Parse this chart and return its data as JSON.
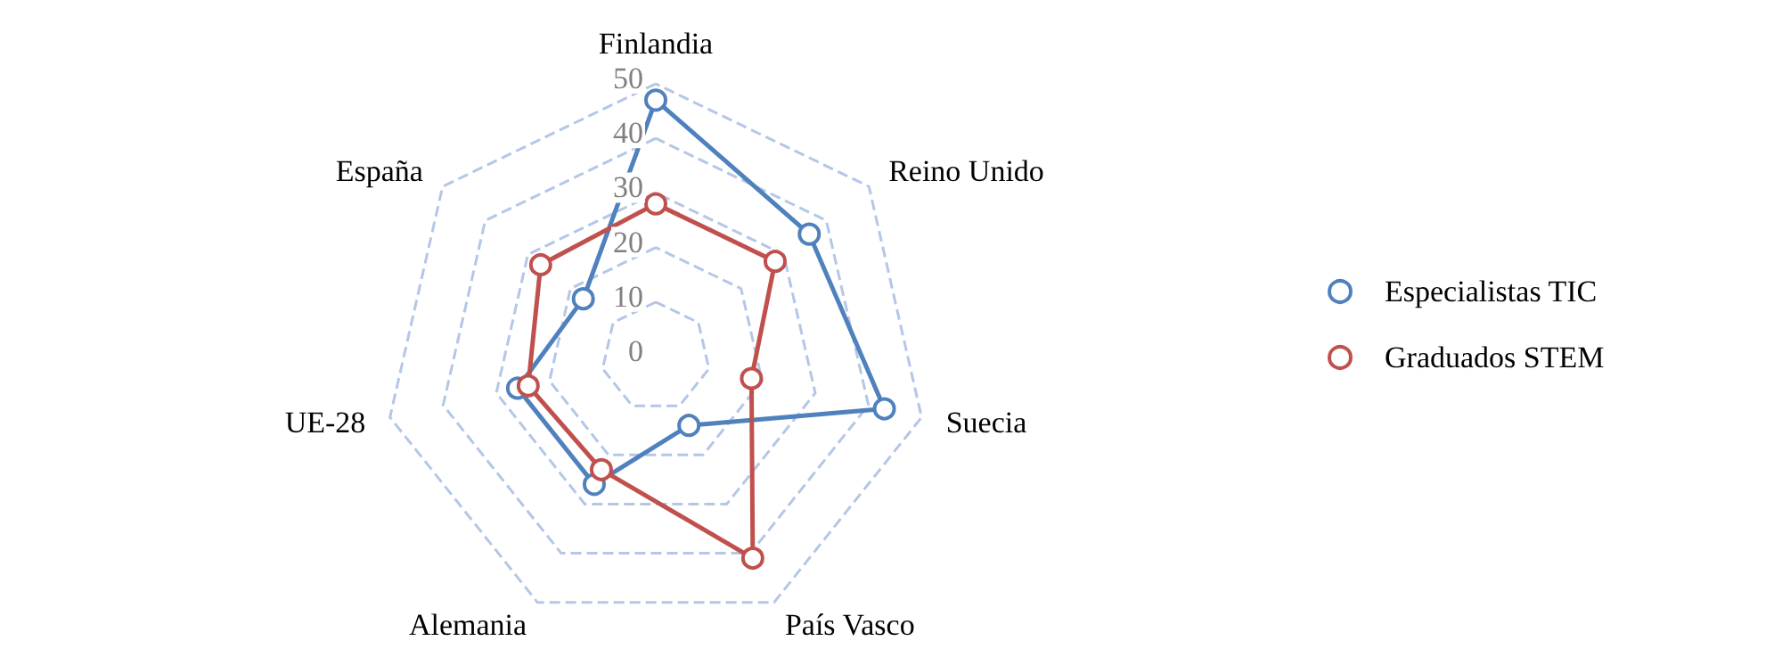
{
  "chart_data": {
    "type": "radar",
    "categories": [
      "Finlandia",
      "Reino Unido",
      "Suecia",
      "País Vasco",
      "Alemania",
      "UE-28",
      "España"
    ],
    "series": [
      {
        "name": "Especialistas TIC",
        "color": "#4f81bd",
        "values": [
          47,
          36,
          43,
          14,
          26,
          26,
          17
        ]
      },
      {
        "name": "Graduados STEM",
        "color": "#c0504d",
        "values": [
          28,
          28,
          18,
          41,
          23,
          24,
          27
        ]
      }
    ],
    "ylim": [
      0,
      50
    ],
    "yticks": [
      0,
      10,
      20,
      30,
      40,
      50
    ],
    "grid": true,
    "legend": "right",
    "marker": "circle"
  }
}
